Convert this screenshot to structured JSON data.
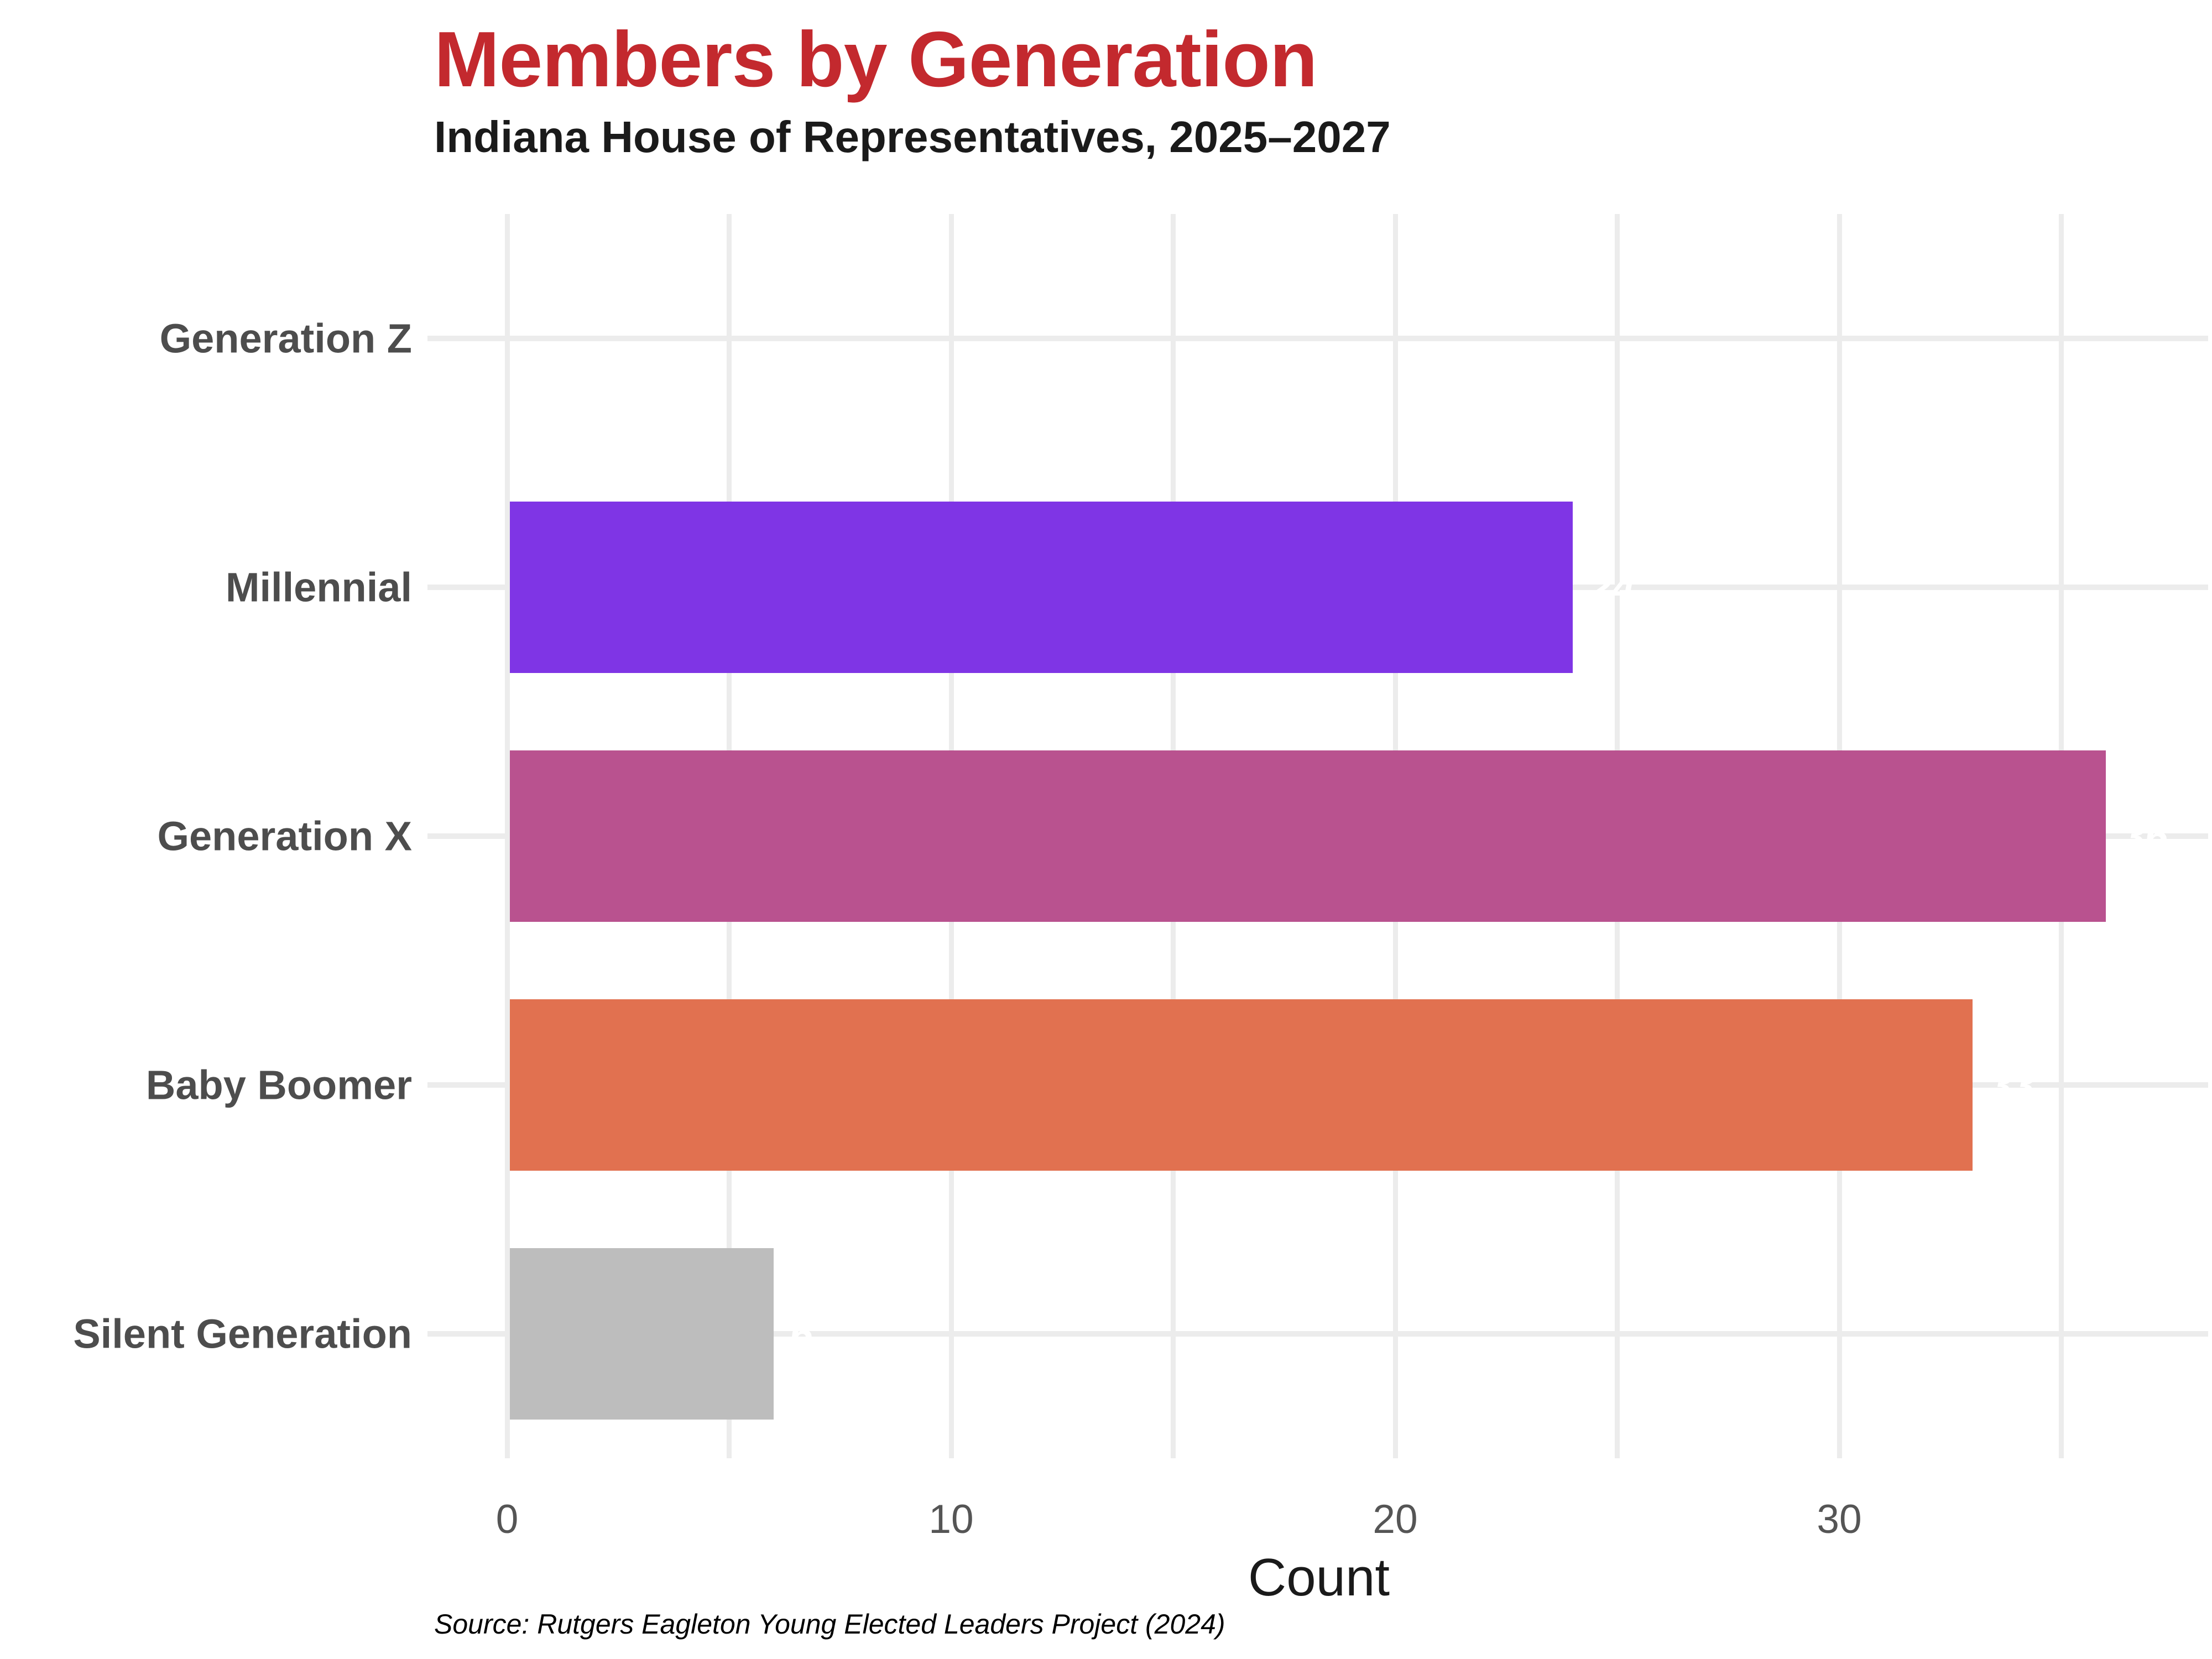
{
  "page": {
    "title": "Members by Generation",
    "subtitle": "Indiana House of Representatives, 2025–2027",
    "source_note": "Source: Rutgers Eagleton Young Elected Leaders Project (2024)"
  },
  "colors": {
    "title": "#C3292E",
    "subtitle": "#1A1A1A",
    "category_label": "#4D4D4D",
    "tick_label": "#555555",
    "axis_title": "#1A1A1A",
    "source_note": "#000000",
    "gridline": "#ECECEC",
    "background": "#FFFFFF",
    "bar_value_label": "#FFFFFF"
  },
  "chart_data": {
    "type": "bar",
    "orientation": "horizontal",
    "title": "Members by Generation",
    "subtitle": "Indiana House of Representatives, 2025–2027",
    "xlabel": "Count",
    "ylabel": "",
    "categories": [
      "Generation Z",
      "Millennial",
      "Generation X",
      "Baby Boomer",
      "Silent Generation"
    ],
    "values": [
      0,
      24,
      36,
      33,
      6
    ],
    "bar_colors": [
      null,
      "#7F35E5",
      "#B9528F",
      "#E17150",
      "#BDBDBD"
    ],
    "bar_value_labels": [
      "",
      "24",
      "36",
      "33",
      "6"
    ],
    "xticks": [
      0,
      10,
      20,
      30
    ],
    "xlim": [
      0,
      38.3
    ],
    "grid_interval": 5,
    "grid": "vertical-every-5-and-row-lines",
    "legend": false,
    "source": "Source: Rutgers Eagleton Young Elected Leaders Project (2024)"
  }
}
